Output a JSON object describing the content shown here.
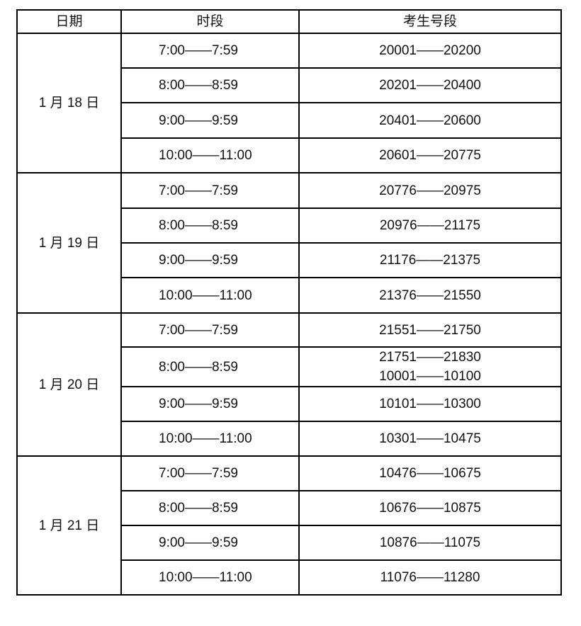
{
  "headers": [
    "日期",
    "时段",
    "考生号段"
  ],
  "groups": [
    {
      "date": "1 月 18 日",
      "rows": [
        {
          "time": "7:00——7:59",
          "range": [
            "20001——20200"
          ]
        },
        {
          "time": "8:00——8:59",
          "range": [
            "20201——20400"
          ]
        },
        {
          "time": "9:00——9:59",
          "range": [
            "20401——20600"
          ]
        },
        {
          "time": "10:00——11:00",
          "range": [
            "20601——20775"
          ]
        }
      ]
    },
    {
      "date": "1 月 19 日",
      "rows": [
        {
          "time": "7:00——7:59",
          "range": [
            "20776——20975"
          ]
        },
        {
          "time": "8:00——8:59",
          "range": [
            "20976——21175"
          ]
        },
        {
          "time": "9:00——9:59",
          "range": [
            "21176——21375"
          ]
        },
        {
          "time": "10:00——11:00",
          "range": [
            "21376——21550"
          ]
        }
      ]
    },
    {
      "date": "1 月 20 日",
      "rows": [
        {
          "time": "7:00——7:59",
          "range": [
            "21551——21750"
          ]
        },
        {
          "time": "8:00——8:59",
          "range": [
            "21751——21830",
            "10001——10100"
          ]
        },
        {
          "time": "9:00——9:59",
          "range": [
            "10101——10300"
          ]
        },
        {
          "time": "10:00——11:00",
          "range": [
            "10301——10475"
          ]
        }
      ]
    },
    {
      "date": "1 月 21 日",
      "rows": [
        {
          "time": "7:00——7:59",
          "range": [
            "10476——10675"
          ]
        },
        {
          "time": "8:00——8:59",
          "range": [
            "10676——10875"
          ]
        },
        {
          "time": "9:00——9:59",
          "range": [
            "10876——11075"
          ]
        },
        {
          "time": "10:00——11:00",
          "range": [
            "11076——11280"
          ]
        }
      ]
    }
  ]
}
